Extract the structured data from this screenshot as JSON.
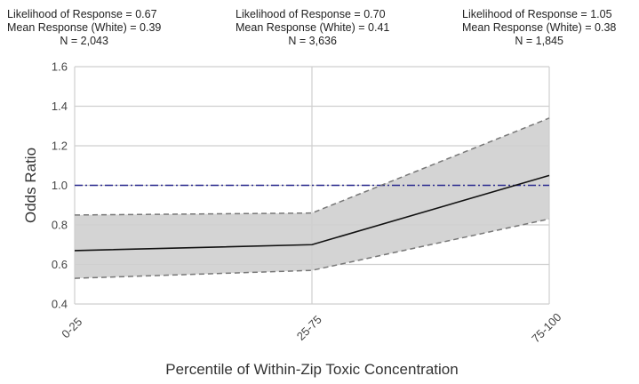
{
  "chart_data": {
    "type": "line",
    "categories": [
      "0-25",
      "25-75",
      "75-100"
    ],
    "series": [
      {
        "values": [
          0.67,
          0.7,
          1.05
        ],
        "lower": [
          0.53,
          0.57,
          0.83
        ],
        "upper": [
          0.85,
          0.86,
          1.34
        ]
      }
    ],
    "reference_line": 1.0,
    "ylim": [
      0.4,
      1.6
    ],
    "y_ticks": [
      "0.4",
      "0.6",
      "0.8",
      "1.0",
      "1.2",
      "1.4",
      "1.6"
    ],
    "xlabel": "Percentile of Within-Zip Toxic Concentration",
    "ylabel": "Odds Ratio",
    "grid": true,
    "annotations": [
      {
        "likelihood": "Likelihood of Response = 0.67",
        "mean": "Mean Response (White) = 0.39",
        "n": "N = 2,043"
      },
      {
        "likelihood": "Likelihood of Response = 0.70",
        "mean": "Mean Response (White) = 0.41",
        "n": "N = 3,636"
      },
      {
        "likelihood": "Likelihood of Response = 1.05",
        "mean": "Mean Response (White) = 0.38",
        "n": "N = 1,845"
      }
    ],
    "colors": {
      "line": "#111111",
      "band": "#d4d4d4",
      "bound": "#777777",
      "reference": "#2b2b8f",
      "grid": "#cfcfcf"
    }
  }
}
